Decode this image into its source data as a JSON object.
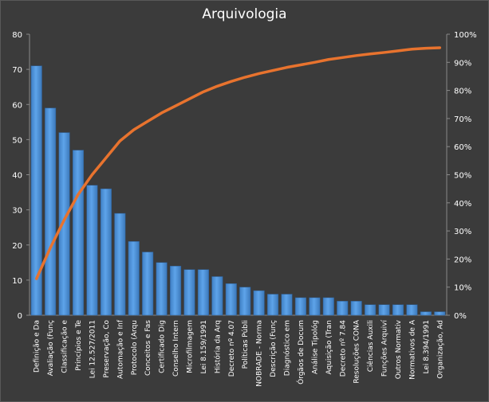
{
  "chart_data": {
    "type": "bar",
    "title": "Arquivologia",
    "categories": [
      "Definição e Da",
      "Avaliação (Funç",
      "Classificação e",
      "Princípios e Te",
      "Lei 12.527/2011",
      "Preservação, Co",
      "Automação e Inf",
      "Protocolo (Arqu",
      "Conceitos e Fas",
      "Certificado Dig",
      "Conselho Intern",
      "Microfilmagem",
      "Lei 8.159/1991",
      "História da Arq",
      "Decreto nº 4.07",
      "Políticas Públi",
      "NOBRADE - Norma",
      "Descrição (Funç",
      "Diagnóstico em",
      "Órgãos de Docum",
      "Análise Tipológ",
      "Aquisição (Tran",
      "Decreto nº 7.84",
      "Resoluções CONA",
      "Ciências Auxili",
      "Funções Arquiví",
      "Outros Normativ",
      "Normativos de A",
      "Lei 8.394/1991",
      "Organização, Ad"
    ],
    "series": [
      {
        "type": "bar",
        "values": [
          71,
          59,
          52,
          47,
          37,
          36,
          29,
          21,
          18,
          15,
          14,
          13,
          13,
          11,
          9,
          8,
          7,
          6,
          6,
          5,
          5,
          5,
          4,
          4,
          3,
          3,
          3,
          3,
          1,
          1
        ],
        "color": "#4f93d8"
      },
      {
        "type": "line",
        "axis": "secondary",
        "values": [
          0.13,
          0.24,
          0.34,
          0.43,
          0.5,
          0.56,
          0.62,
          0.66,
          0.69,
          0.72,
          0.745,
          0.77,
          0.795,
          0.815,
          0.832,
          0.847,
          0.86,
          0.871,
          0.882,
          0.891,
          0.9,
          0.91,
          0.917,
          0.924,
          0.93,
          0.935,
          0.941,
          0.947,
          0.95,
          0.952
        ],
        "color": "#e8732e"
      }
    ],
    "ylim": [
      0,
      80
    ],
    "yticks": [
      0,
      10,
      20,
      30,
      40,
      50,
      60,
      70,
      80
    ],
    "y2lim": [
      0,
      1
    ],
    "y2ticks": [
      "0%",
      "10%",
      "20%",
      "30%",
      "40%",
      "50%",
      "60%",
      "70%",
      "80%",
      "90%",
      "100%"
    ],
    "grid": false,
    "legend": "none"
  }
}
